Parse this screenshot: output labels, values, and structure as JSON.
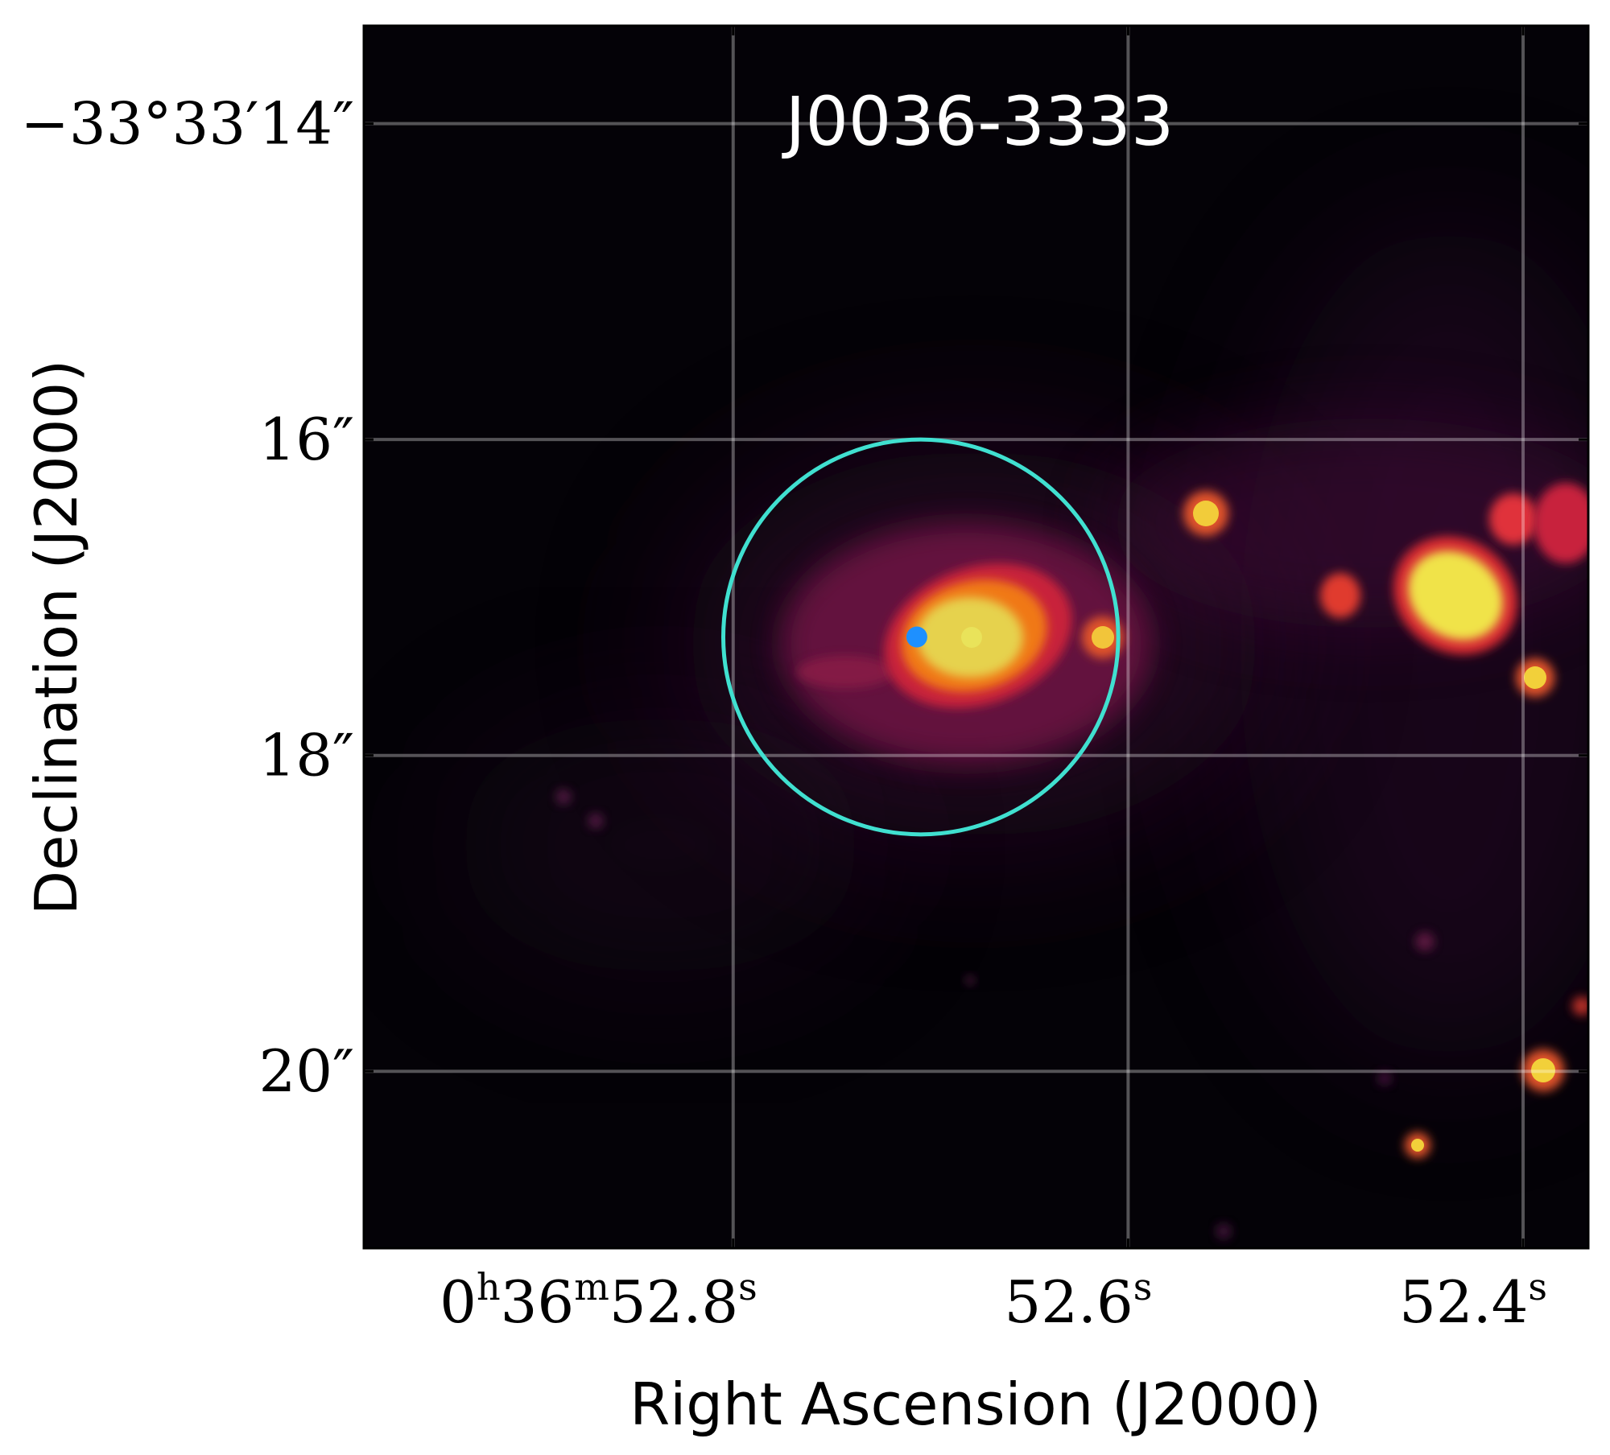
{
  "chart_data": {
    "type": "image",
    "title": "J0036-3333",
    "xlabel": "Right Ascension (J2000)",
    "ylabel": "Declination (J2000)",
    "colormap": "inferno-like (black → purple → red → orange → yellow)",
    "grid": true,
    "x_ticks": [
      {
        "ra_seconds": 52.8,
        "main": "0",
        "sup1": "h",
        "mid": "36",
        "sup2": "m",
        "tail": "52.8",
        "sup3": "s"
      },
      {
        "ra_seconds": 52.6,
        "main": "",
        "sup1": "",
        "mid": "",
        "sup2": "",
        "tail": "52.6",
        "sup3": "s"
      },
      {
        "ra_seconds": 52.4,
        "main": "",
        "sup1": "",
        "mid": "",
        "sup2": "",
        "tail": "52.4",
        "sup3": "s"
      }
    ],
    "y_ticks": [
      {
        "dec_arcsec": 14,
        "label": "−33°33′14″"
      },
      {
        "dec_arcsec": 16,
        "label": "16″"
      },
      {
        "dec_arcsec": 18,
        "label": "18″"
      },
      {
        "dec_arcsec": 20,
        "label": "20″"
      }
    ],
    "x_range_seconds": [
      52.987,
      52.367
    ],
    "y_range_arcsec": [
      13.38,
      21.12
    ],
    "aperture": {
      "ra_seconds": 52.705,
      "dec_arcsec": 17.25,
      "radius_arcsec": 1.25,
      "color": "#40e0d0"
    },
    "center_marker": {
      "ra_seconds": 52.707,
      "dec_arcsec": 17.25,
      "color": "#1e90ff"
    },
    "sources": [
      {
        "ra_seconds": 52.707,
        "dec_arcsec": 17.25,
        "brightness": "brightest"
      },
      {
        "ra_seconds": 52.638,
        "dec_arcsec": 17.25,
        "brightness": "bright"
      },
      {
        "ra_seconds": 52.591,
        "dec_arcsec": 16.5,
        "brightness": "bright"
      },
      {
        "ra_seconds": 52.424,
        "dec_arcsec": 16.95,
        "brightness": "bright"
      },
      {
        "ra_seconds": 52.392,
        "dec_arcsec": 17.45,
        "brightness": "bright"
      },
      {
        "ra_seconds": 52.387,
        "dec_arcsec": 20.0,
        "brightness": "bright"
      },
      {
        "ra_seconds": 52.451,
        "dec_arcsec": 20.45,
        "brightness": "medium"
      }
    ]
  }
}
